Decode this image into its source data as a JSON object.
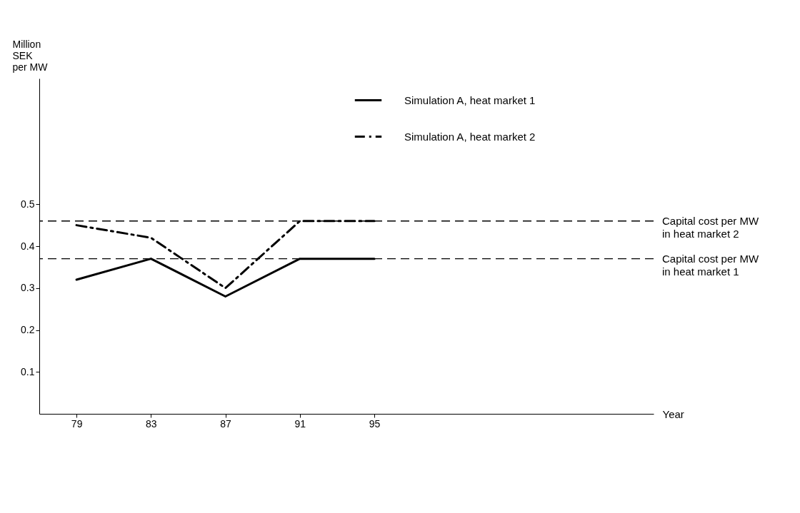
{
  "chart_data": {
    "type": "line",
    "xlabel": "Year",
    "ylabel": "Million\nSEK\nper MW",
    "x": [
      79,
      83,
      87,
      91,
      95
    ],
    "series": [
      {
        "name": "Simulation A, heat market 1",
        "color": "#000000",
        "line_style": "solid",
        "values": [
          0.32,
          0.37,
          0.28,
          0.37,
          0.37
        ]
      },
      {
        "name": "Simulation A, heat market 2",
        "color": "#000000",
        "line_style": "dashdot",
        "values": [
          0.45,
          0.42,
          0.3,
          0.46,
          0.46
        ]
      }
    ],
    "ref_lines": [
      {
        "axis": "y",
        "value": 0.46,
        "label": "Capital cost per MW\nin heat market 2",
        "line_style": "dashed",
        "color": "#000000"
      },
      {
        "axis": "y",
        "value": 0.37,
        "label": "Capital cost per MW\nin heat market 1",
        "line_style": "dashed",
        "color": "#000000"
      }
    ],
    "xlim": [
      77,
      110
    ],
    "xticks": [
      79,
      83,
      87,
      91,
      95
    ],
    "ylim": [
      0,
      0.8
    ],
    "yticks": [
      0.1,
      0.2,
      0.3,
      0.4,
      0.5
    ],
    "grid": false,
    "legend": "top right",
    "marker": "none"
  }
}
